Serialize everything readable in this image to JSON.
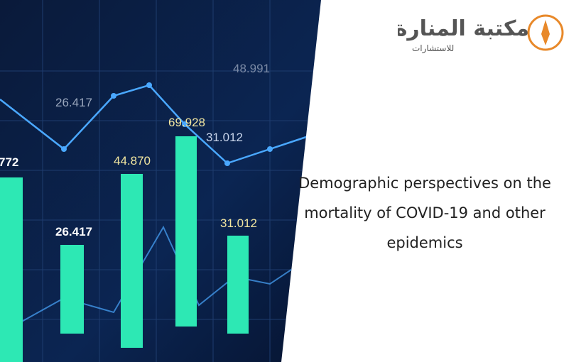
{
  "logo": {
    "name": "مكتبة المنارة",
    "tagline": "للاستشارات"
  },
  "image": {
    "labels": [
      "26.417",
      "48.991",
      "69.928",
      "31.012",
      "44.870",
      "772",
      "26.417",
      "31.012"
    ]
  },
  "title": "Demographic perspectives on the mortality of COVID-19 and other epidemics"
}
